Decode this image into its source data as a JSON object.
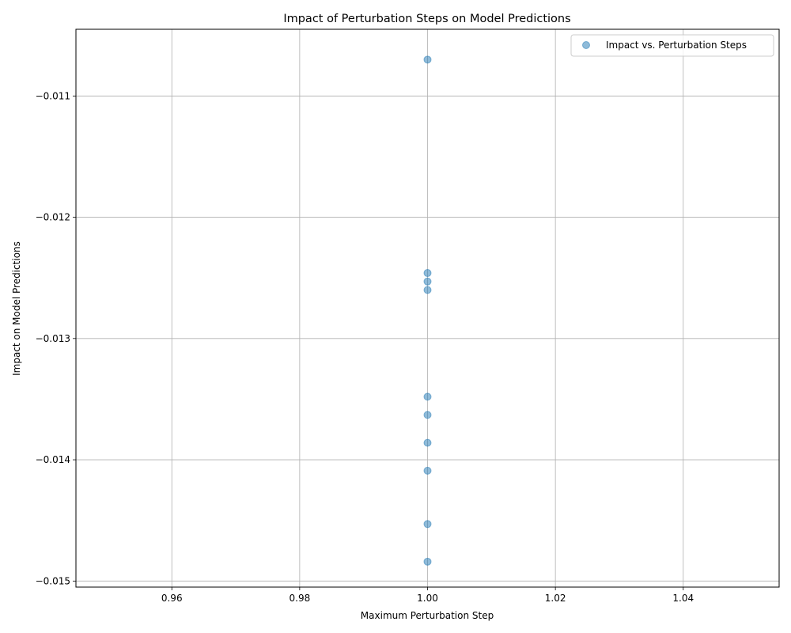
{
  "chart_data": {
    "type": "scatter",
    "title": "Impact of Perturbation Steps on Model Predictions",
    "xlabel": "Maximum Perturbation Step",
    "ylabel": "Impact on Model Predictions",
    "xlim": [
      0.945,
      1.055
    ],
    "ylim": [
      -0.01505,
      -0.01045
    ],
    "xticks": [
      0.96,
      0.98,
      1.0,
      1.02,
      1.04
    ],
    "xtick_labels": [
      "0.96",
      "0.98",
      "1.00",
      "1.02",
      "1.04"
    ],
    "yticks": [
      -0.015,
      -0.014,
      -0.013,
      -0.012,
      -0.011
    ],
    "ytick_labels": [
      "−0.015",
      "−0.014",
      "−0.013",
      "−0.012",
      "−0.011"
    ],
    "grid": true,
    "legend_position": "top-right",
    "series": [
      {
        "name": "Impact vs. Perturbation Steps",
        "color": "#1f77b4",
        "x": [
          1.0,
          1.0,
          1.0,
          1.0,
          1.0,
          1.0,
          1.0,
          1.0,
          1.0,
          1.0
        ],
        "y": [
          -0.0107,
          -0.01246,
          -0.01253,
          -0.0126,
          -0.01348,
          -0.01363,
          -0.01386,
          -0.01409,
          -0.01453,
          -0.01484
        ]
      }
    ]
  }
}
